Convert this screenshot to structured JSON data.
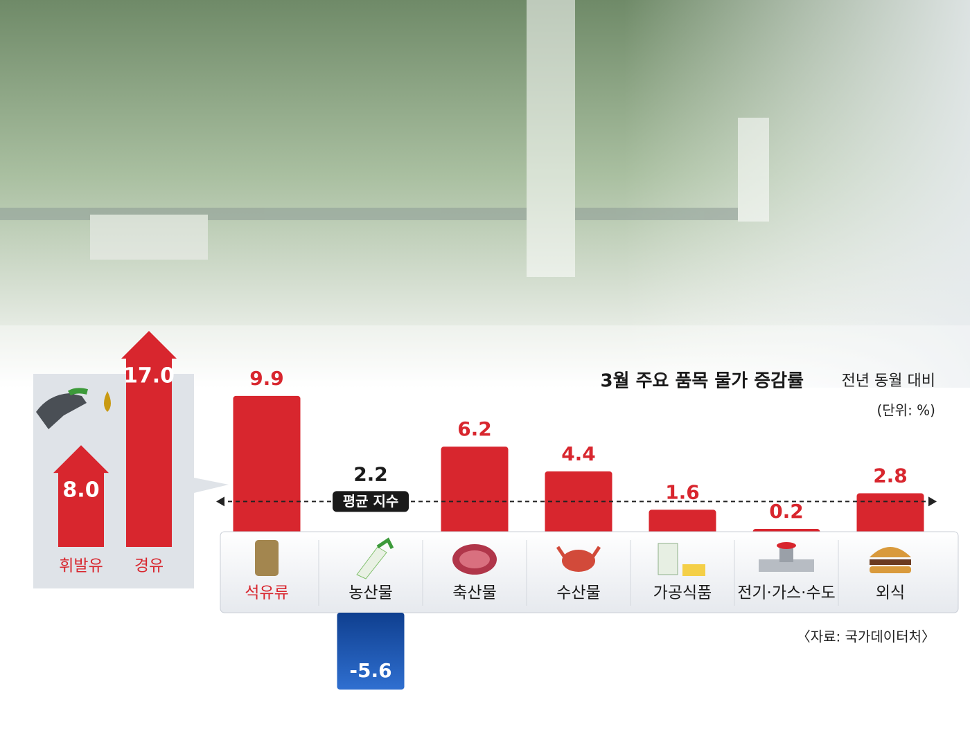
{
  "chart_data": [
    {
      "type": "bar",
      "title": "3월 주요 품목 물가 증감률",
      "subtitle": "전년 동월 대비",
      "unit": "(단위: %)",
      "source": "〈자료: 국가데이터처〉",
      "categories": [
        "석유류",
        "농산물",
        "축산물",
        "수산물",
        "가공식품",
        "전기·가스·수도",
        "외식"
      ],
      "values": [
        9.9,
        -5.6,
        6.2,
        4.4,
        1.6,
        0.2,
        2.8
      ],
      "color": "#d8262e",
      "negative_color": "#1f5cb8",
      "ylim": [
        -6,
        10
      ],
      "average": {
        "label": "평균 지수",
        "value": 2.2
      }
    },
    {
      "type": "bar",
      "categories": [
        "휘발유",
        "경유"
      ],
      "values": [
        8.0,
        17.0
      ],
      "value_labels": [
        "8.0",
        "17.0"
      ],
      "color": "#d8262e",
      "ylim": [
        0,
        17
      ]
    }
  ]
}
